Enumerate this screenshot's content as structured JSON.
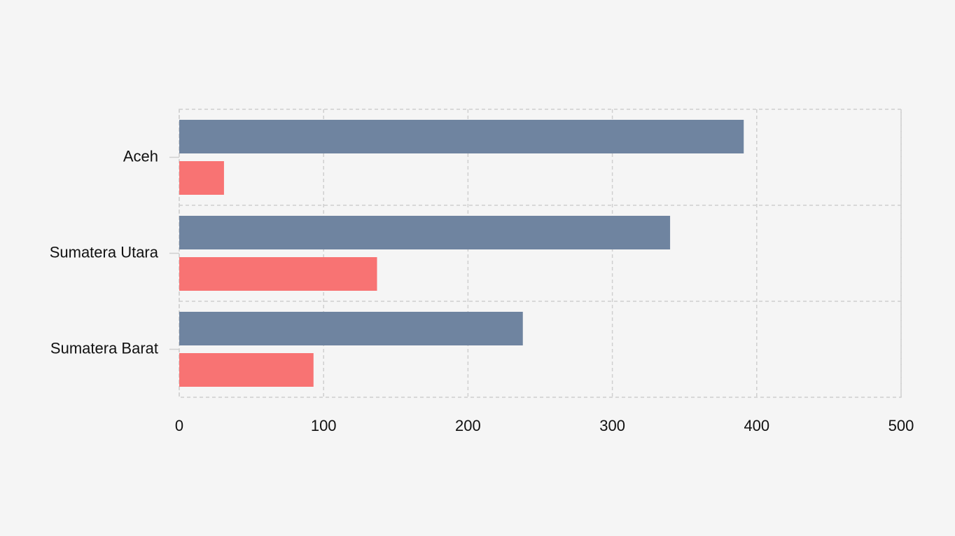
{
  "chart_data": {
    "type": "bar",
    "orientation": "horizontal",
    "categories": [
      "Aceh",
      "Sumatera Utara",
      "Sumatera Barat"
    ],
    "series": [
      {
        "color": "#6f84a0",
        "values": [
          391,
          340,
          238
        ]
      },
      {
        "color": "#f87373",
        "values": [
          31,
          137,
          93
        ]
      }
    ],
    "xlim": [
      0,
      500
    ],
    "xticks": [
      0,
      100,
      200,
      300,
      400,
      500
    ],
    "grid": true
  }
}
